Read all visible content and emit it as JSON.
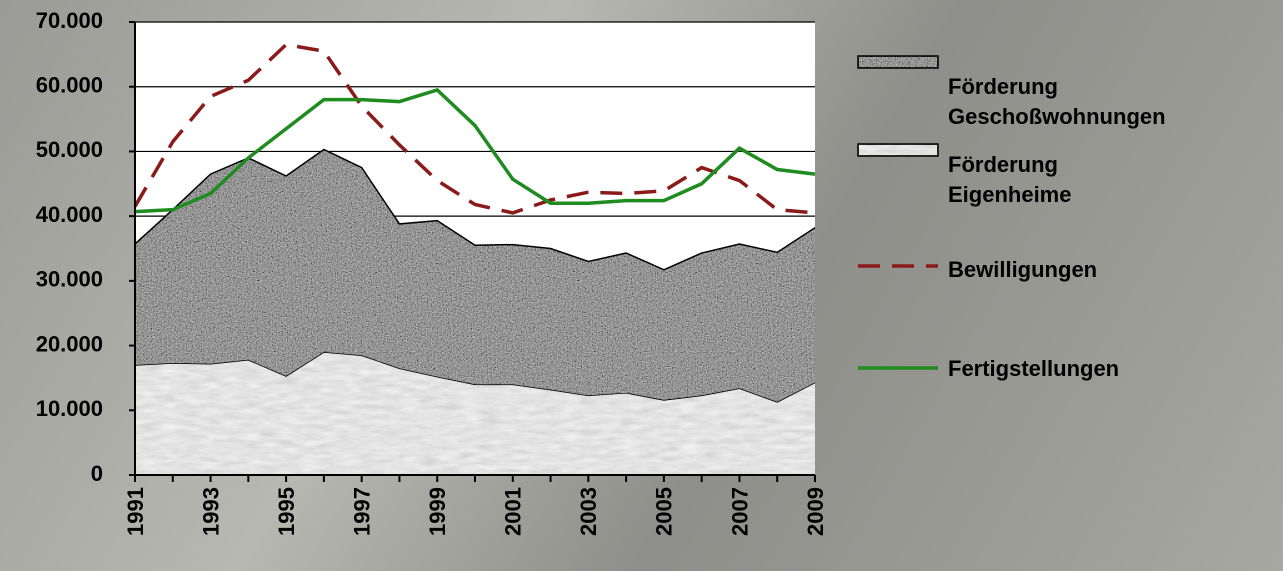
{
  "chart_data": {
    "type": "area",
    "categories": [
      "1991",
      null,
      "1993",
      null,
      "1995",
      null,
      "1997",
      null,
      "1999",
      null,
      "2001",
      null,
      "2003",
      null,
      "2005",
      null,
      "2007",
      null,
      "2009"
    ],
    "series": [
      {
        "name": "Förderung Geschoßwohnungen",
        "kind": "area",
        "color": "#8c8c8c",
        "values": [
          18700,
          23700,
          29300,
          31200,
          30900,
          31300,
          29000,
          22300,
          24100,
          21500,
          21600,
          21800,
          20700,
          21600,
          20100,
          22000,
          22300,
          23100,
          23900
        ]
      },
      {
        "name": "Förderung Eigenheime",
        "kind": "area",
        "color": "#e6e6e6",
        "values": [
          17000,
          17300,
          17200,
          17800,
          15300,
          19000,
          18500,
          16500,
          15200,
          14000,
          14000,
          13200,
          12300,
          12700,
          11600,
          12300,
          13400,
          11300,
          14300
        ]
      },
      {
        "name": "Bewilligungen",
        "kind": "line",
        "dashed": true,
        "color": "#8b1a1a",
        "values": [
          41500,
          51500,
          58500,
          61000,
          66500,
          65500,
          57000,
          51000,
          45500,
          41800,
          40500,
          42500,
          43700,
          43500,
          43900,
          47500,
          45500,
          41000,
          40500
        ]
      },
      {
        "name": "Fertigstellungen",
        "kind": "line",
        "dashed": false,
        "color": "#1e8c1e",
        "values": [
          40700,
          41000,
          43500,
          49000,
          53500,
          58000,
          58000,
          57700,
          59500,
          54000,
          45700,
          42000,
          42000,
          42400,
          42400,
          45000,
          50500,
          47200,
          46500
        ]
      }
    ],
    "ylim": [
      0,
      70000
    ],
    "yticks": [
      0,
      {
        "value": 10000,
        "label": "10.000"
      },
      {
        "value": 20000,
        "label": "20.000"
      },
      {
        "value": 30000,
        "label": "30.000"
      },
      {
        "value": 40000,
        "label": "40.000"
      },
      {
        "value": 50000,
        "label": "50.000"
      },
      {
        "value": 60000,
        "label": "60.000"
      },
      {
        "value": 70000,
        "label": "70.000"
      }
    ],
    "grid": true
  }
}
